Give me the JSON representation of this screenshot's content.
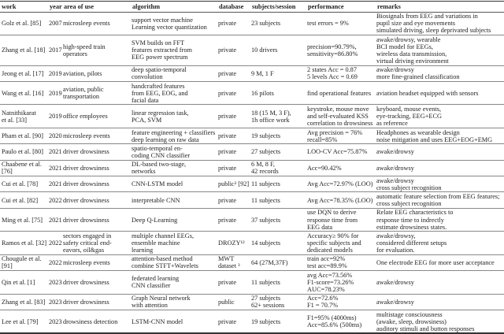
{
  "table": {
    "headers": [
      "work",
      "year",
      "area of use",
      "algorithm",
      "database",
      "subjects/session",
      "performance",
      "remarks"
    ],
    "rows": [
      [
        "Golz et al. [85]",
        "2007",
        "microsleep events",
        "support vector machine\nLearning vector quantization",
        "private",
        "23 subjects",
        "test errors = 9%",
        "Biosignals from EEG and variations in\npupil size and eye movements\nsimulated driving, sleep deprivated subjects"
      ],
      [
        "Zhang et al. [18]",
        "2017",
        "high-speed train\noperators",
        "SVM builds on FFT\nfeatures extracted from\nEEG power spectrum",
        "private",
        "10 drivers",
        "precision=90.79%,\nsensitivity=86.80%",
        "awake/drowsy, wearable\nBCI model for EEGs,\nwireless data transmission,\nvirtual driving environment"
      ],
      [
        "Jeong et al. [17]",
        "2019",
        "aviation, pilots",
        "deep spatio-temporal\nconvolution",
        "private",
        "9 M, 1 F",
        "2 states Acc = 0.87\n5 levels Acc = 0.69",
        "awake/drowsy\nmore fine-grained classification"
      ],
      [
        "Wang et al. [16]",
        "2019",
        "aviation, public\ntransportation",
        "handcrafted features\nfrom EEG, EOG, and\nfacial data",
        "private",
        "16 pilots",
        "find operational features",
        "aviation headset equipped with sensors"
      ],
      [
        "Natnithikarat\net al. [33]",
        "2019",
        "office employees",
        "linear regression task,\nPCA, SVM",
        "private",
        "18 (15 M, 3 F),\n1h office work",
        "keystroke, mouse move\nand self-evaluated KSS\ncorrelation to drowsiness",
        "keyboard, mouse events,\neye-tracking, EEG+ECG\nas reference"
      ],
      [
        "Pham et al. [90]",
        "2020",
        "microsleep events",
        "feature engineering + classifiers\ndeep learning on raw data",
        "private",
        "19 subjects",
        "Avg precision = 76%\nrecall=85%",
        "Headphones as wearable design\nnoise mitigation and uses EEG+EOG+EMG"
      ],
      [
        "Paulo et al. [80]",
        "2021",
        "driver drowsiness",
        "spatio-temporal en-\ncoding CNN classifier",
        "private",
        "27 subjects",
        "LOO-CV Acc=75.87%",
        "awake/drowsy"
      ],
      [
        "Chaabene et al. [76]",
        "2021",
        "driver drowsiness",
        "DL-based two-stage,\nnetworks",
        "private",
        "6 M, 8 F,\n42 records",
        "Acc=90.42%",
        "awake/drowsy"
      ],
      [
        "Cui et al. [78]",
        "2021",
        "driver drowsiness",
        "CNN-LSTM model",
        "public² [92]",
        "11 subjects",
        "Avg Acc=72.97% (LOO)",
        "awake/drowsy\ncross subject recognition"
      ],
      [
        "Cui et al. [82]",
        "2022",
        "driver drowsiness",
        "interpretable CNN",
        "private",
        "11 subjects",
        "Avg Acc=78.35% (LOO)",
        "automatic feature selection from EEG features;\ncross subject recognition"
      ],
      [
        "Ming et al. [75]",
        "2021",
        "driver drowsiness",
        "Deep Q-Learning",
        "private",
        "37 subjects",
        "use DQN to derive\nresponse time from\nEEG data",
        "Relate EEG characteristics to\nresponse time to indrectly\nestimate drowsiness states."
      ],
      [
        "Ramos et al. [32]",
        "2022",
        "sectors engaged in\nsafety critical end-\neavors, oil&gas",
        "multiple channel EEGs,\nensemble machine\nlearning",
        "DROZY¹²",
        "14 subjects",
        "Accuracy≥ 90% for\nspecific subjects and\ndedicated models",
        "awake/drowsy,\nconsidered different setups\nfor evaluation."
      ],
      [
        "Chougule et al. [91]",
        "2022",
        "microsleep events",
        "attention-based method\ncombine STFT+Wavelets",
        "MWT dataset ³",
        "64 (27M,37F)",
        "train acc=92%\ntest acc=89.9%",
        "One electrode EEG for more user acceptance"
      ],
      [
        "Qin et al. [1]",
        "2023",
        "driver drowsiness",
        "federated learning\nCNN classifier",
        "private",
        "11 subjects",
        "avg Acc=73.56%\nF1-score=73.26%\nAUC=78.23%",
        "awake/drowsy"
      ],
      [
        "Zhang et al. [83]",
        "2023",
        "driver drowsiness",
        "Graph Neural network\nwith attention",
        "public",
        "27 subjects\n62+ sessions",
        "Acc=72.6%\nF1 = 70.7%",
        "awake/drowsy"
      ],
      [
        "Lee et al. [79]",
        "2023",
        "drowsiness detection",
        "LSTM-CNN model",
        "private",
        "19 subjects",
        "F1=95% (4000ms)\nAcc=85.6% (500ms)",
        "multistage consciousness\n(awake, sleep, drowsiness)\nauditory stimuli and button responses"
      ]
    ]
  }
}
